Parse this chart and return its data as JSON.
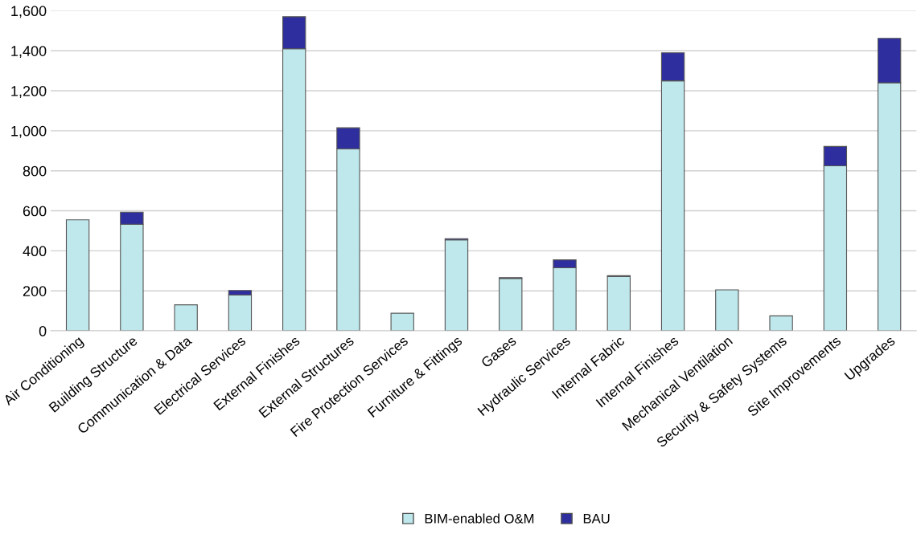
{
  "chart_data": {
    "type": "bar",
    "stacked": true,
    "categories": [
      "Air Conditioning",
      "Building Structure",
      "Communication & Data",
      "Electrical Services",
      "External Finishes",
      "External Structures",
      "Fire Protection Services",
      "Furniture & Fittings",
      "Gases",
      "Hydraulic Services",
      "Internal Fabric",
      "Internal Finishes",
      "Mechanical Ventilation",
      "Security & Safety Systems",
      "Site Improvements",
      "Upgrades"
    ],
    "series": [
      {
        "name": "BIM-enabled O&M",
        "color": "#bfe8ec",
        "values": [
          555,
          533,
          130,
          180,
          1410,
          910,
          88,
          455,
          262,
          315,
          272,
          1250,
          205,
          75,
          825,
          1240
        ]
      },
      {
        "name": "BAU",
        "color": "#2e2e9e",
        "values": [
          null,
          60,
          null,
          22,
          160,
          105,
          null,
          6,
          4,
          40,
          4,
          140,
          null,
          null,
          97,
          222
        ]
      }
    ],
    "ylim": [
      0,
      1600
    ],
    "yticks": [
      {
        "value": 0,
        "label": "0"
      },
      {
        "value": 200,
        "label": "200"
      },
      {
        "value": 400,
        "label": "400"
      },
      {
        "value": 600,
        "label": "600"
      },
      {
        "value": 800,
        "label": "800"
      },
      {
        "value": 1000,
        "label": "1,000"
      },
      {
        "value": 1200,
        "label": "1,200"
      },
      {
        "value": 1400,
        "label": "1,400"
      },
      {
        "value": 1600,
        "label": "1,600"
      }
    ],
    "grid": "y",
    "legend": "bottom"
  }
}
